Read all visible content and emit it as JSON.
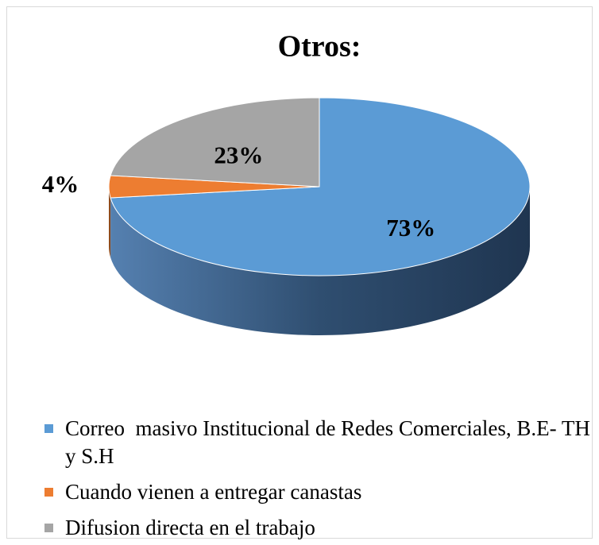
{
  "chart_data": {
    "type": "pie3d",
    "title": "Otros:",
    "categories": [
      "Correo  masivo Institucional de Redes Comerciales, B.E- TH y S.H",
      "Cuando vienen a entregar canastas",
      "Difusion directa en el trabajo"
    ],
    "values": [
      73,
      4,
      23
    ],
    "value_labels": [
      "73%",
      "4%",
      "23%"
    ],
    "colors": [
      "#5b9bd5",
      "#ed7d31",
      "#a5a5a5"
    ],
    "legend": "bottom"
  }
}
